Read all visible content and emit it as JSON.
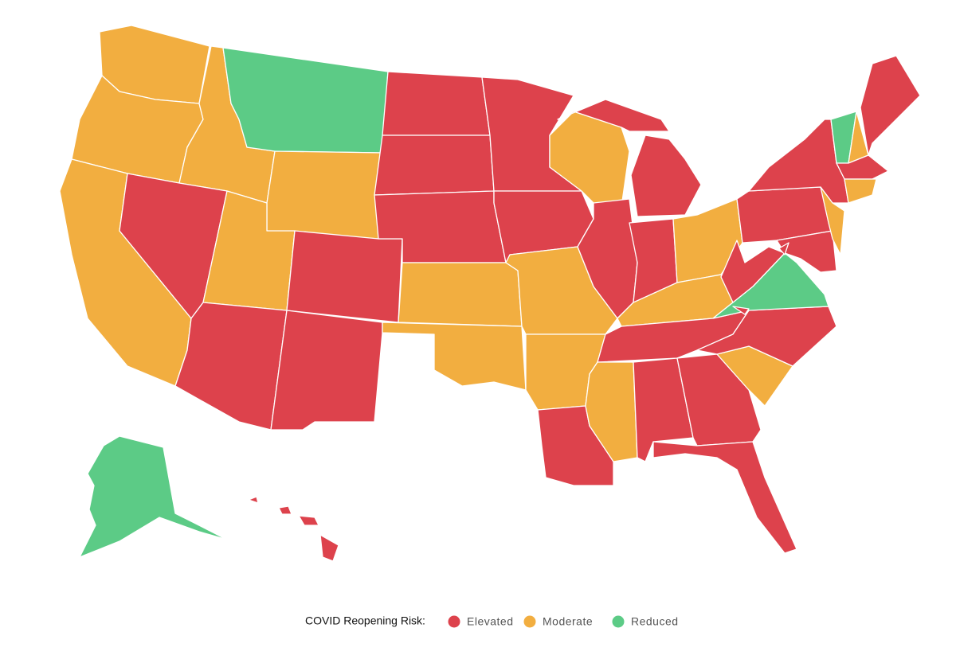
{
  "legend": {
    "title": "COVID Reopening Risk:",
    "items": [
      {
        "label": "Elevated",
        "color": "#dd424c"
      },
      {
        "label": "Moderate",
        "color": "#f2ae40"
      },
      {
        "label": "Reduced",
        "color": "#5ccb86"
      }
    ]
  },
  "regions": [
    1,
    1,
    1,
    1,
    0,
    2,
    1,
    1,
    0,
    0,
    0,
    0,
    0,
    0,
    1,
    1,
    0,
    0,
    1,
    1,
    0,
    1,
    0,
    0,
    0,
    1,
    1,
    0,
    1,
    0,
    0,
    0,
    1,
    0,
    2,
    0,
    0,
    0,
    0,
    2,
    1,
    0,
    0,
    1,
    1,
    2,
    0,
    0,
    0
  ]
}
